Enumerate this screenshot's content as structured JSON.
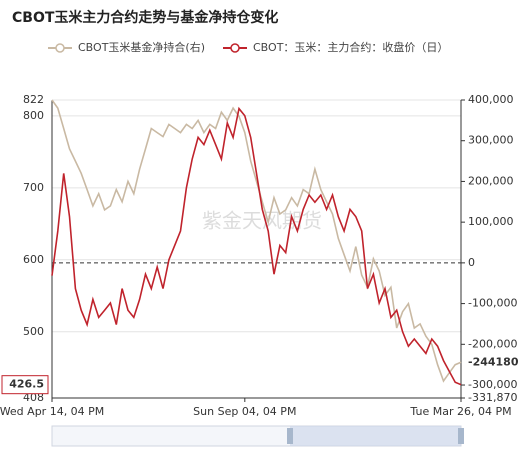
{
  "chart_data": {
    "type": "line",
    "title": "CBOT玉米主力合约走势与基金净持仓变化",
    "watermark": "紫金天风期货",
    "x": [
      0,
      1,
      2,
      3,
      4,
      5,
      6,
      7,
      8,
      9,
      10,
      11,
      12,
      13,
      14,
      15,
      16,
      17,
      18,
      19,
      20,
      21,
      22,
      23,
      24,
      25,
      26,
      27,
      28,
      29,
      30,
      31,
      32,
      33,
      34,
      35,
      36,
      37,
      38,
      39,
      40,
      41,
      42,
      43,
      44,
      45,
      46,
      47,
      48,
      49,
      50,
      51,
      52,
      53,
      54,
      55,
      56,
      57,
      58,
      59,
      60,
      61,
      62,
      63,
      64,
      65,
      66,
      67,
      68,
      69,
      70
    ],
    "xlim": [
      0,
      70
    ],
    "xticks": [
      {
        "value": 0,
        "label": "Wed Apr 14, 04 PM"
      },
      {
        "value": 33,
        "label": "Sun Sep 04, 04 PM"
      },
      {
        "value": 70,
        "label": "Tue Mar 26, 04 PM"
      }
    ],
    "ylim": [
      408,
      822
    ],
    "yticks": [
      408,
      500,
      600,
      700,
      800,
      822
    ],
    "y2lim": [
      -331870,
      400000
    ],
    "y2ticks": [
      {
        "value": -331870,
        "label": "-331,870"
      },
      {
        "value": -300000,
        "label": "-300,000"
      },
      {
        "value": -200000,
        "label": "-200,000"
      },
      {
        "value": -100000,
        "label": "-100,000"
      },
      {
        "value": 0,
        "label": "0"
      },
      {
        "value": 100000,
        "label": "100,000"
      },
      {
        "value": 200000,
        "label": "200,000"
      },
      {
        "value": 300000,
        "label": "300,000"
      },
      {
        "value": 400000,
        "label": "400,000"
      }
    ],
    "grid": true,
    "series": [
      {
        "name": "CBOT玉米基金净持合(右)",
        "color": "#c9b9a3",
        "axis": "y2",
        "values": [
          400000,
          380000,
          330000,
          280000,
          250000,
          220000,
          180000,
          140000,
          170000,
          130000,
          140000,
          180000,
          150000,
          200000,
          170000,
          230000,
          280000,
          330000,
          320000,
          310000,
          340000,
          330000,
          320000,
          340000,
          330000,
          350000,
          320000,
          340000,
          330000,
          370000,
          350000,
          380000,
          360000,
          320000,
          250000,
          200000,
          150000,
          100000,
          160000,
          120000,
          130000,
          160000,
          140000,
          180000,
          170000,
          230000,
          180000,
          150000,
          120000,
          60000,
          20000,
          -20000,
          40000,
          -30000,
          -60000,
          10000,
          -20000,
          -80000,
          -60000,
          -160000,
          -120000,
          -100000,
          -160000,
          -150000,
          -180000,
          -200000,
          -250000,
          -290000,
          -270000,
          -250000,
          -244180
        ]
      },
      {
        "name": "CBOT：玉米：主力合约：收盘价（日）",
        "color": "#c0232c",
        "values": [
          578,
          640,
          720,
          660,
          560,
          530,
          510,
          545,
          520,
          530,
          540,
          510,
          560,
          530,
          520,
          545,
          580,
          560,
          590,
          560,
          600,
          620,
          640,
          700,
          740,
          770,
          760,
          780,
          760,
          740,
          790,
          770,
          810,
          800,
          770,
          720,
          670,
          640,
          580,
          620,
          610,
          660,
          640,
          670,
          690,
          680,
          690,
          670,
          690,
          660,
          640,
          670,
          660,
          640,
          560,
          580,
          540,
          560,
          520,
          530,
          500,
          480,
          490,
          480,
          470,
          490,
          480,
          460,
          445,
          430,
          426.5
        ]
      }
    ]
  }
}
